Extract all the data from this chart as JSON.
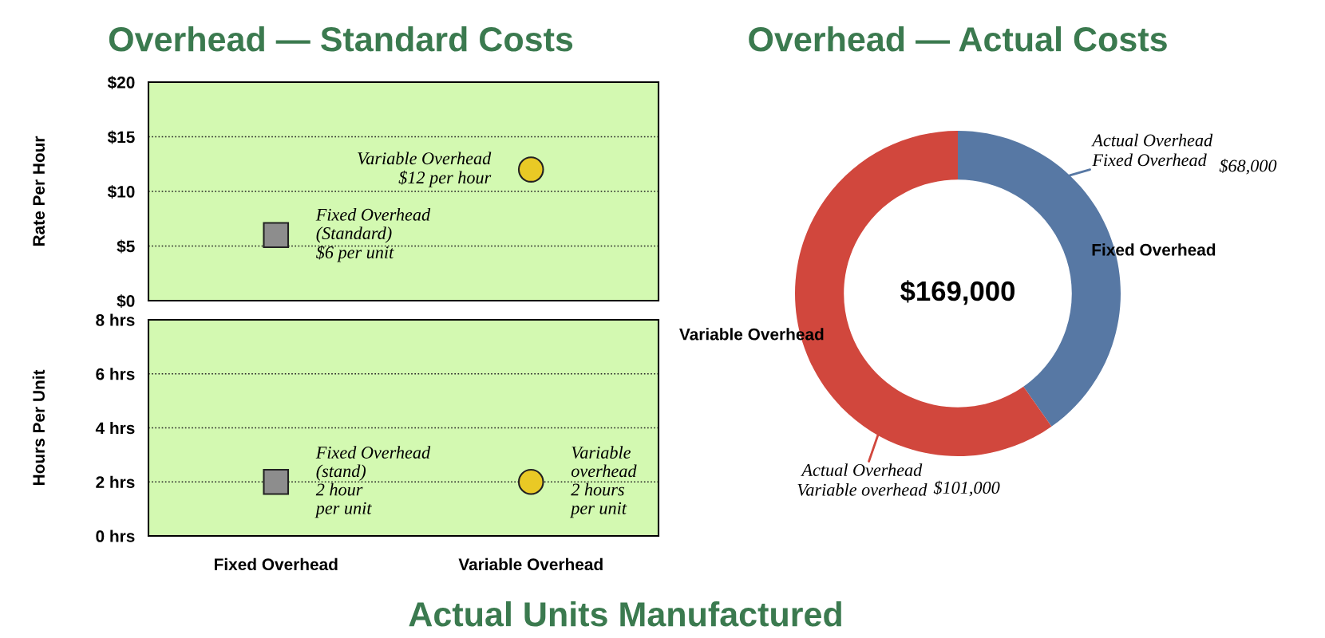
{
  "chart_data": [
    {
      "type": "scatter",
      "title": "Overhead — Standard Costs",
      "ylabel": "Rate Per Hour",
      "categories": [
        "Fixed Overhead",
        "Variable Overhead"
      ],
      "series": [
        {
          "color": "#8d8d8d",
          "marker": "square",
          "values": [
            6,
            null
          ]
        },
        {
          "color": "#e9c925",
          "marker": "circle",
          "values": [
            null,
            12
          ]
        }
      ],
      "ylim": [
        0,
        20
      ],
      "yticks": [
        {
          "value": 0,
          "label": "$0"
        },
        {
          "value": 5,
          "label": "$5"
        },
        {
          "value": 10,
          "label": "$10"
        },
        {
          "value": 15,
          "label": "$15"
        },
        {
          "value": 20,
          "label": "$20"
        }
      ],
      "grid": "y",
      "tick_labels": "y",
      "annotations": [
        {
          "text": "Fixed Overhead\n(Standard)\n$6 per unit",
          "x": "Fixed Overhead",
          "y": 6
        },
        {
          "text": "Variable Overhead\n$12 per hour",
          "x": "Variable Overhead",
          "y": 12
        }
      ]
    },
    {
      "type": "donut",
      "title": "Overhead — Actual Costs",
      "categories": [
        "Fixed Overhead",
        "Variable Overhead"
      ],
      "values": [
        68000,
        101000
      ],
      "value_labels": [
        "$68,000",
        "$101,000"
      ],
      "colors": [
        "#5778a4",
        "#d1473d"
      ],
      "annotations": [
        "$169,000",
        {
          "text": "Actual Overhead\nFixed Overhead",
          "x": "Fixed Overhead"
        },
        {
          "text": "Actual Overhead\nVariable overhead",
          "x": "Variable Overhead"
        }
      ]
    },
    {
      "type": "scatter",
      "ylabel": "Hours Per Unit",
      "categories": [
        "Fixed Overhead",
        "Variable Overhead"
      ],
      "series": [
        {
          "color": "#8d8d8d",
          "marker": "square",
          "values": [
            2,
            null
          ]
        },
        {
          "color": "#e9c925",
          "marker": "circle",
          "values": [
            null,
            2
          ]
        }
      ],
      "ylim": [
        0,
        8
      ],
      "yticks": [
        {
          "value": 0,
          "label": "0 hrs"
        },
        {
          "value": 2,
          "label": "2 hrs"
        },
        {
          "value": 4,
          "label": "4 hrs"
        },
        {
          "value": 6,
          "label": "6 hrs"
        },
        {
          "value": 8,
          "label": "8 hrs"
        }
      ],
      "grid": "y",
      "annotations": [
        {
          "text": "Fixed Overhead\n(stand)\n2 hour\nper unit",
          "x": "Fixed Overhead",
          "y": 2
        },
        {
          "text": "Variable\noverhead\n2 hours\nper unit",
          "x": "Variable Overhead",
          "y": 2
        }
      ]
    },
    {
      "type": "other",
      "title": "Actual Units Manufactured"
    }
  ]
}
